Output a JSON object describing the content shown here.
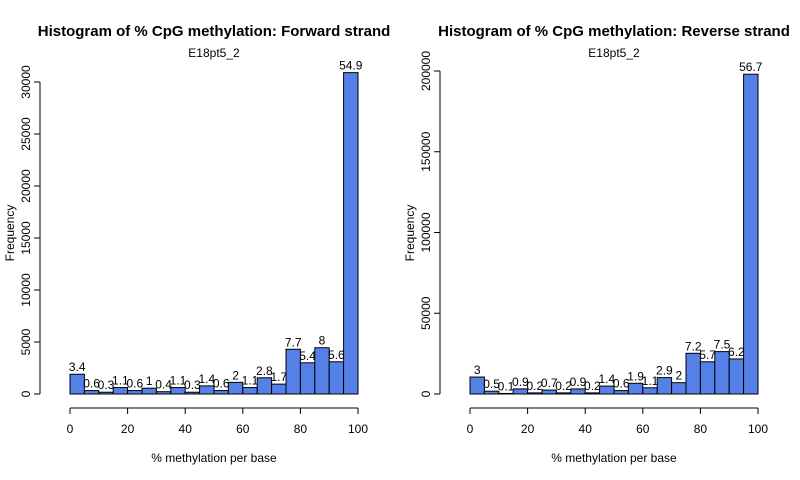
{
  "chart_data": [
    {
      "type": "bar",
      "title": "Histogram of % CpG methylation: Forward strand",
      "subtitle": "E18pt5_2",
      "xlabel": "% methylation per base",
      "ylabel": "Frequency",
      "xlim": [
        0,
        100
      ],
      "ylim": [
        0,
        30000
      ],
      "x_ticks": [
        0,
        20,
        40,
        60,
        80,
        100
      ],
      "y_ticks": [
        0,
        5000,
        10000,
        15000,
        20000,
        25000,
        30000
      ],
      "bin_width": 5,
      "bar_color": "#5580e8",
      "x": [
        0,
        5,
        10,
        15,
        20,
        25,
        30,
        35,
        40,
        45,
        50,
        55,
        60,
        65,
        70,
        75,
        80,
        85,
        90,
        95
      ],
      "values": [
        1900,
        330,
        170,
        620,
        330,
        560,
        220,
        620,
        170,
        780,
        330,
        1120,
        620,
        1560,
        950,
        4300,
        3000,
        4450,
        3100,
        30900
      ],
      "data_labels": [
        "3.4",
        "0.6",
        "0.3",
        "1.1",
        "0.6",
        "1",
        "0.4",
        "1.1",
        "0.3",
        "1.4",
        "0.6",
        "2",
        "1.1",
        "2.8",
        "1.7",
        "7.7",
        "5.4",
        "8",
        "5.6",
        "54.9"
      ]
    },
    {
      "type": "bar",
      "title": "Histogram of % CpG methylation: Reverse strand",
      "subtitle": "E18pt5_2",
      "xlabel": "% methylation per base",
      "ylabel": "Frequency",
      "xlim": [
        0,
        100
      ],
      "ylim": [
        0,
        200000
      ],
      "x_ticks": [
        0,
        20,
        40,
        60,
        80,
        100
      ],
      "y_ticks": [
        0,
        50000,
        100000,
        150000,
        200000
      ],
      "bin_width": 5,
      "bar_color": "#5580e8",
      "x": [
        0,
        5,
        10,
        15,
        20,
        25,
        30,
        35,
        40,
        45,
        50,
        55,
        60,
        65,
        70,
        75,
        80,
        85,
        90,
        95
      ],
      "values": [
        10500,
        1750,
        350,
        3150,
        700,
        2450,
        700,
        3150,
        700,
        4900,
        2100,
        6650,
        3850,
        10150,
        7000,
        25200,
        19950,
        26250,
        21700,
        198000
      ],
      "data_labels": [
        "3",
        "0.5",
        "0.1",
        "0.9",
        "0.2",
        "0.7",
        "0.2",
        "0.9",
        "0.2",
        "1.4",
        "0.6",
        "1.9",
        "1.1",
        "2.9",
        "2",
        "7.2",
        "5.7",
        "7.5",
        "6.2",
        "56.7"
      ]
    }
  ]
}
